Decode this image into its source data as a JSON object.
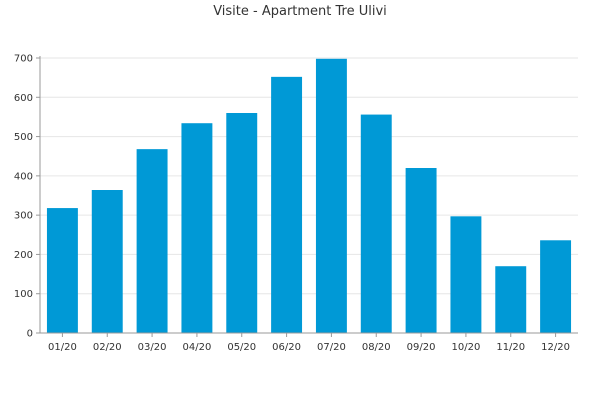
{
  "chart_data": {
    "type": "bar",
    "title": "Visite - Apartment Tre Ulivi",
    "xlabel": "",
    "ylabel": "",
    "categories": [
      "01/20",
      "02/20",
      "03/20",
      "04/20",
      "05/20",
      "06/20",
      "07/20",
      "08/20",
      "09/20",
      "10/20",
      "11/20",
      "12/20"
    ],
    "values": [
      318,
      364,
      468,
      534,
      560,
      652,
      698,
      556,
      420,
      297,
      170,
      236
    ],
    "ylim": [
      0,
      700
    ],
    "yticks": [
      "0",
      "100",
      "200",
      "300",
      "400",
      "500",
      "600",
      "700"
    ],
    "grid": true,
    "bar_color": "#0099d6"
  }
}
